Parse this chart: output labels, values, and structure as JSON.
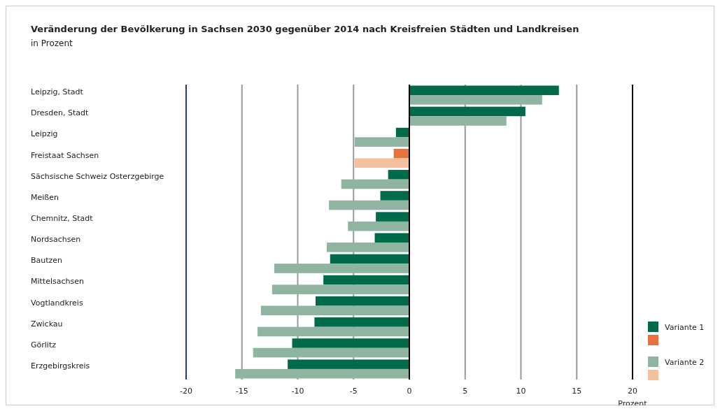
{
  "chart_data": {
    "type": "bar",
    "orientation": "horizontal",
    "title": "Veränderung der Bevölkerung in Sachsen 2030 gegenüber 2014 nach Kreisfreien Städten und Landkreisen",
    "subtitle": "in Prozent",
    "xlabel": "Prozent",
    "categories": [
      "Leipzig, Stadt",
      "Dresden, Stadt",
      "Leipzig",
      "Freistaat Sachsen",
      "Sächsische Schweiz Osterzgebirge",
      "Meißen",
      "Chemnitz, Stadt",
      "Nordsachsen",
      "Bautzen",
      "Mittelsachsen",
      "Vogtlandkreis",
      "Zwickau",
      "Görlitz",
      "Erzgebirgskreis"
    ],
    "series": [
      {
        "name": "Variante 1",
        "color": "#006a4a",
        "colors": [
          "#006a4a",
          "#006a4a",
          "#006a4a",
          "#e8733a",
          "#006a4a",
          "#006a4a",
          "#006a4a",
          "#006a4a",
          "#006a4a",
          "#006a4a",
          "#006a4a",
          "#006a4a",
          "#006a4a",
          "#006a4a"
        ],
        "values": [
          13.4,
          10.4,
          -1.2,
          -1.4,
          -1.9,
          -2.6,
          -3.0,
          -3.1,
          -7.1,
          -7.7,
          -8.4,
          -8.5,
          -10.5,
          -10.9
        ]
      },
      {
        "name": "Variante 2",
        "color": "#8fb4a0",
        "colors": [
          "#8fb4a0",
          "#8fb4a0",
          "#8fb4a0",
          "#f6c09c",
          "#8fb4a0",
          "#8fb4a0",
          "#8fb4a0",
          "#8fb4a0",
          "#8fb4a0",
          "#8fb4a0",
          "#8fb4a0",
          "#8fb4a0",
          "#8fb4a0",
          "#8fb4a0"
        ],
        "values": [
          11.9,
          8.7,
          -4.9,
          -4.9,
          -6.1,
          -7.2,
          -5.5,
          -7.4,
          -12.1,
          -12.3,
          -13.3,
          -13.6,
          -14.0,
          -15.6
        ]
      }
    ],
    "xlim": [
      -20,
      20
    ],
    "xticks": [
      -20,
      -15,
      -10,
      -5,
      0,
      5,
      10,
      15,
      20
    ],
    "grid": "x",
    "ref_lines": [
      {
        "axis": "x",
        "value": -20,
        "color": "#1f3c88"
      },
      {
        "axis": "x",
        "value": 20,
        "color": "#000000"
      }
    ],
    "legend": "bottom right"
  }
}
